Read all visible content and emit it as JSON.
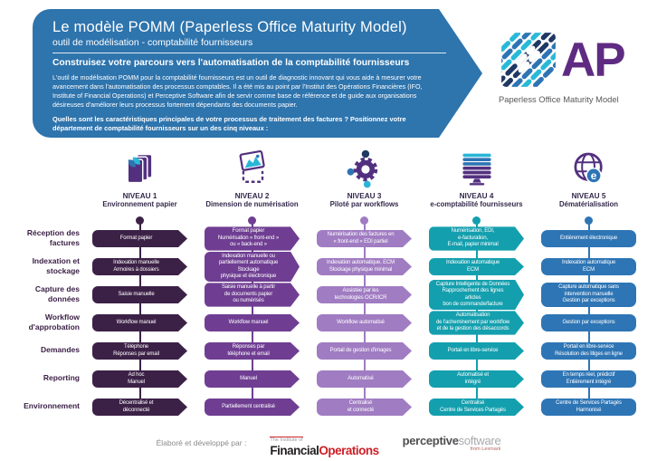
{
  "colors": {
    "header_blue": "#2e74ad",
    "ap_purple": "#5f2b82",
    "icon_purple": "#53307f",
    "icon_cyan": "#29b9d8",
    "icon_blue": "#2d74b4",
    "icon_navy": "#1f3864"
  },
  "header": {
    "title": "Le modèle POMM (Paperless Office Maturity Model)",
    "subtitle": "outil de modélisation - comptabilité fournisseurs",
    "banner": "Construisez votre parcours vers l'automatisation de la comptabilité fournisseurs",
    "body": "L'outil de modélisation POMM pour la comptabilité fournisseurs est un outil de diagnostic innovant qui vous aide à mesurer votre avancement dans l'automatisation des processus comptables. Il a été mis au point par l'Institut des Opérations Financières (IFO, Institute of Financial Operations) et Perceptive Software afin de servir comme base de référence et de guide aux organisations désireuses d'améliorer leurs processus fortement dépendants des documents papier.",
    "question": "Quelles sont les caractéristiques principales de votre processus de traitement des factures ? Positionnez votre département de comptabilité fournisseurs sur un des cinq niveaux :"
  },
  "logo": {
    "acronym": "AP",
    "tagline": "Paperless Office Maturity Model"
  },
  "row_labels": [
    "Réception des factures",
    "Indexation et stockage",
    "Capture des données",
    "Workflow d'approbation",
    "Demandes",
    "Reporting",
    "Environnement"
  ],
  "levels": [
    {
      "name": "NIVEAU 1",
      "label": "Environnement papier",
      "color": "#3c2147",
      "icon": "paper-stack-icon",
      "box_shape": "arrow",
      "cells": [
        "Format papier",
        "Indexation manuelle\nArmoires à dossiers",
        "Saisie manuelle",
        "Workflow manuel",
        "Téléphone\nRéponses par email",
        "Ad hoc\nManuel",
        "Décentralisé et\ndéconnecté"
      ]
    },
    {
      "name": "NIVEAU 2",
      "label": "Dimension de numérisation",
      "color": "#6f3e92",
      "icon": "scan-image-icon",
      "box_shape": "arrow",
      "cells": [
        "Format papier\nNumérisation « front-end »\nou « back-end »",
        "Indexation manuelle ou\npartiellement automatique Stockage\nphysique et électronique",
        "Saisie manuelle à partir\nde documents papier\nou numérisés",
        "Workflow manuel",
        "Réponses par\ntéléphone et email",
        "Manuel",
        "Partiellement centralisé"
      ]
    },
    {
      "name": "NIVEAU 3",
      "label": "Piloté par workflows",
      "color": "#a07cc2",
      "icon": "workflow-gear-icon",
      "box_shape": "arrow",
      "cells": [
        "Numérisation des factures en\n« front-end » EDI partiel",
        "Indexation automatique, ECM\nStockage physique minimal",
        "Assistée par les\ntechnologies OCR/ICR",
        "Workflow automatisé",
        "Portail de gestion d'images",
        "Automatisé",
        "Centralisé\net connecté"
      ]
    },
    {
      "name": "NIVEAU 4",
      "label": "e-comptabilité fournisseurs",
      "color": "#149fae",
      "icon": "stacked-screen-icon",
      "box_shape": "arrow",
      "cells": [
        "Numérisation, EDI,\ne-facturation,\nE-mail, papier minimal",
        "Indexation automatique\nECM",
        "Capture Intelligente de Données\nRapprochement des lignes articles\nbon de commande/facture",
        "Automatisation\nde l'acheminement par workflow\net de la gestion des désaccords",
        "Portail en libre-service",
        "Automatisé et\nintégré",
        "Centralisé\nCentre de Services Partagés"
      ]
    },
    {
      "name": "NIVEAU 5",
      "label": "Dématérialisation",
      "color": "#2e75b5",
      "icon": "globe-e-icon",
      "box_shape": "rounded",
      "cells": [
        "Entièrement électronique",
        "Indexation automatique\nECM",
        "Capture automatique sans\nintervention manuelle\nGestion par exceptions",
        "Gestion par exceptions",
        "Portail en libre-service\nRésolution des litiges en ligne",
        "En temps réel, prédictif\nEntièrement intégré",
        "Centre de Services Partagés\nHarmonisé"
      ]
    }
  ],
  "footer": {
    "credit": "Élaboré et développé par :",
    "institute_small": "The Institute of",
    "institute_name_black": "Financial",
    "institute_name_red": "Operations",
    "perceptive_bold": "perceptive",
    "perceptive_light": "software",
    "perceptive_sub": "from Lexmark"
  }
}
